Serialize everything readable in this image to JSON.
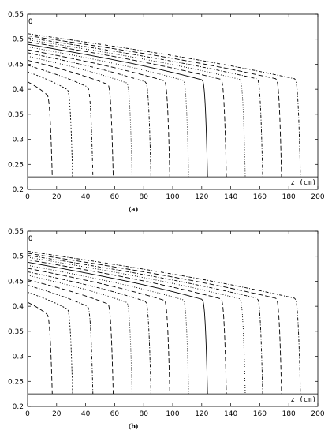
{
  "chart_data": [
    {
      "type": "line",
      "panel_label": "(a)",
      "xlabel": "z (cm)",
      "ylabel": "Q",
      "xlim": [
        0,
        200
      ],
      "ylim": [
        0.2,
        0.55
      ],
      "xticks": [
        0,
        20,
        40,
        60,
        80,
        100,
        120,
        140,
        160,
        180,
        200
      ],
      "yticks": [
        0.2,
        0.25,
        0.3,
        0.35,
        0.4,
        0.45,
        0.5,
        0.55
      ],
      "baseline": 0.225,
      "grid": false,
      "series": [
        {
          "dash": "6,3",
          "Q0": 0.415,
          "Qedge": 0.39,
          "zend": 17
        },
        {
          "dash": "2,2",
          "Q0": 0.435,
          "Qedge": 0.4,
          "zend": 31
        },
        {
          "dash": "4,2,1,2",
          "Q0": 0.448,
          "Qedge": 0.405,
          "zend": 45
        },
        {
          "dash": "6,3",
          "Q0": 0.458,
          "Qedge": 0.41,
          "zend": 59
        },
        {
          "dash": "1,2",
          "Q0": 0.466,
          "Qedge": 0.413,
          "zend": 72
        },
        {
          "dash": "4,2,1,2",
          "Q0": 0.473,
          "Qedge": 0.415,
          "zend": 85
        },
        {
          "dash": "6,3",
          "Q0": 0.479,
          "Qedge": 0.417,
          "zend": 98
        },
        {
          "dash": "1,2",
          "Q0": 0.485,
          "Qedge": 0.418,
          "zend": 111
        },
        {
          "dash": "",
          "Q0": 0.49,
          "Qedge": 0.419,
          "zend": 124
        },
        {
          "dash": "6,3",
          "Q0": 0.495,
          "Qedge": 0.42,
          "zend": 137
        },
        {
          "dash": "1,2",
          "Q0": 0.499,
          "Qedge": 0.42,
          "zend": 150
        },
        {
          "dash": "4,2,1,2",
          "Q0": 0.503,
          "Qedge": 0.421,
          "zend": 162
        },
        {
          "dash": "6,3",
          "Q0": 0.507,
          "Qedge": 0.421,
          "zend": 175
        },
        {
          "dash": "4,2,1,2",
          "Q0": 0.511,
          "Qedge": 0.421,
          "zend": 188
        }
      ]
    },
    {
      "type": "line",
      "panel_label": "(b)",
      "xlabel": "z (cm)",
      "ylabel": "Q",
      "xlim": [
        0,
        200
      ],
      "ylim": [
        0.2,
        0.55
      ],
      "xticks": [
        0,
        20,
        40,
        60,
        80,
        100,
        120,
        140,
        160,
        180,
        200
      ],
      "yticks": [
        0.2,
        0.25,
        0.3,
        0.35,
        0.4,
        0.45,
        0.5,
        0.55
      ],
      "baseline": 0.225,
      "grid": false,
      "series": [
        {
          "dash": "6,3",
          "Q0": 0.408,
          "Qedge": 0.385,
          "zend": 17
        },
        {
          "dash": "2,2",
          "Q0": 0.428,
          "Qedge": 0.395,
          "zend": 31
        },
        {
          "dash": "4,2,1,2",
          "Q0": 0.442,
          "Qedge": 0.4,
          "zend": 45
        },
        {
          "dash": "6,3",
          "Q0": 0.453,
          "Qedge": 0.405,
          "zend": 59
        },
        {
          "dash": "1,2",
          "Q0": 0.462,
          "Qedge": 0.408,
          "zend": 72
        },
        {
          "dash": "4,2,1,2",
          "Q0": 0.469,
          "Qedge": 0.41,
          "zend": 85
        },
        {
          "dash": "6,3",
          "Q0": 0.476,
          "Qedge": 0.412,
          "zend": 98
        },
        {
          "dash": "1,2",
          "Q0": 0.482,
          "Qedge": 0.413,
          "zend": 111
        },
        {
          "dash": "",
          "Q0": 0.488,
          "Qedge": 0.414,
          "zend": 124
        },
        {
          "dash": "6,3",
          "Q0": 0.493,
          "Qedge": 0.415,
          "zend": 137
        },
        {
          "dash": "1,2",
          "Q0": 0.498,
          "Qedge": 0.415,
          "zend": 150
        },
        {
          "dash": "4,2,1,2",
          "Q0": 0.502,
          "Qedge": 0.416,
          "zend": 162
        },
        {
          "dash": "6,3",
          "Q0": 0.506,
          "Qedge": 0.416,
          "zend": 175
        },
        {
          "dash": "4,2,1,2",
          "Q0": 0.51,
          "Qedge": 0.416,
          "zend": 188
        }
      ]
    }
  ]
}
